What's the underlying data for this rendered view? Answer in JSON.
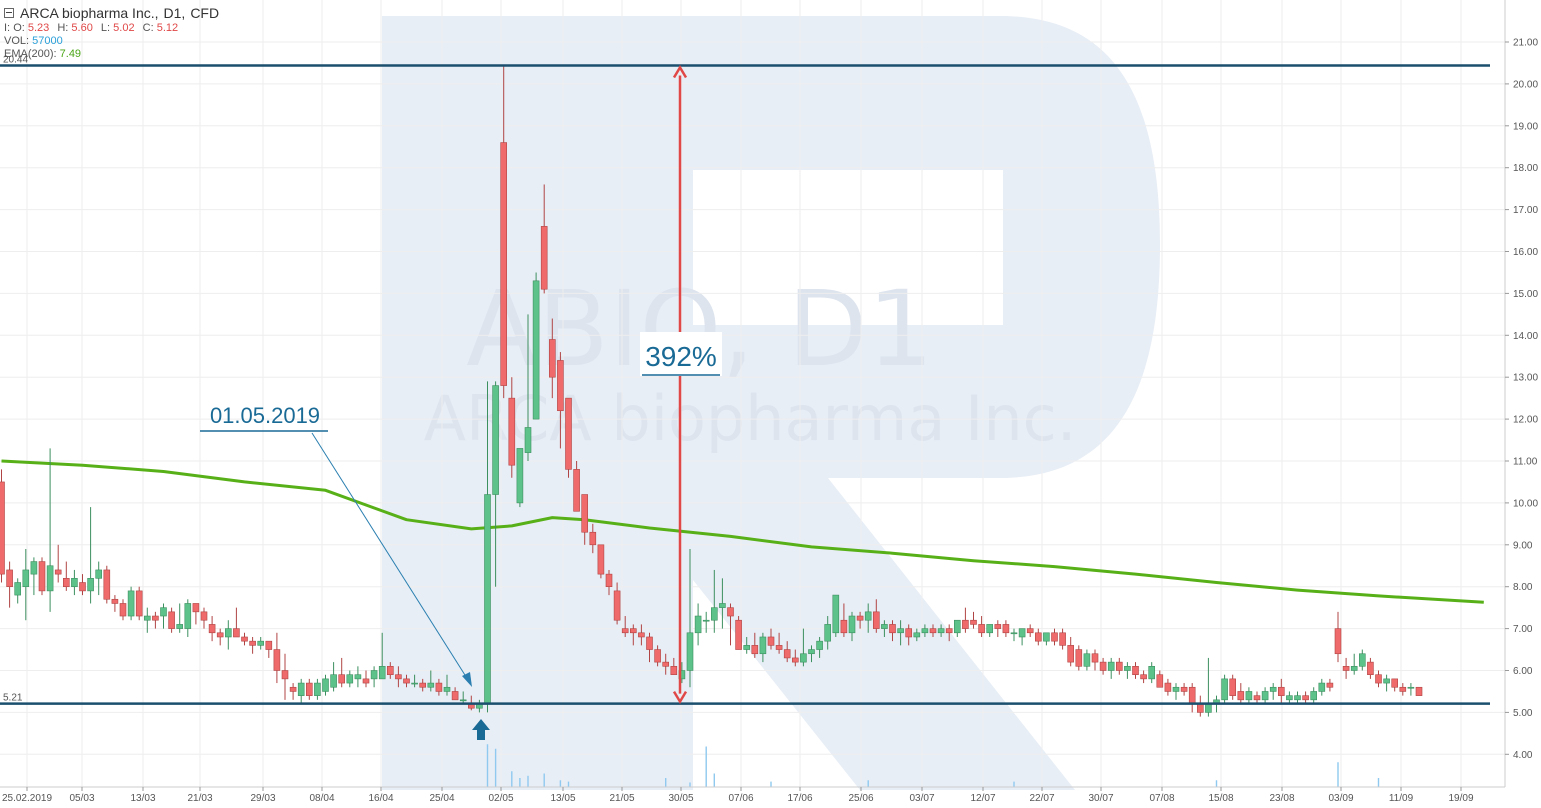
{
  "header": {
    "title": "ARCA biopharma Inc.,",
    "timeframe": "D1,",
    "type": "CFD",
    "ohlc": {
      "i_label": "I:",
      "o_label": "O:",
      "o": "5.23",
      "h_label": "H:",
      "h": "5.60",
      "l_label": "L:",
      "l": "5.02",
      "c_label": "C:",
      "c": "5.12"
    },
    "vol_label": "VOL:",
    "vol": "57000",
    "ema_label": "EMA(200):",
    "ema": "7.49"
  },
  "watermark": {
    "line1": "ABIO, D1",
    "line2": "ARCA biopharma Inc."
  },
  "annotations": {
    "date": "01.05.2019",
    "percent": "392%",
    "upper_level": "20.44",
    "lower_level": "5.21"
  },
  "colors": {
    "bull": "#5cc28a",
    "bear": "#ef6b6b",
    "ema": "#58b018",
    "level": "#1b4f6e",
    "arrow": "#e04848",
    "annotation": "#1a6a96",
    "watermark": "#e8eef6"
  },
  "chart_data": {
    "type": "candlestick",
    "title": "ARCA biopharma Inc., D1, CFD",
    "ylim": [
      3.6,
      21.6
    ],
    "y_ticks": [
      "4.00",
      "5.00",
      "6.00",
      "7.00",
      "8.00",
      "9.00",
      "10.00",
      "11.00",
      "12.00",
      "13.00",
      "14.00",
      "15.00",
      "16.00",
      "17.00",
      "18.00",
      "19.00",
      "20.00",
      "21.00"
    ],
    "x_ticks": [
      "25.02.2019",
      "05/03",
      "13/03",
      "21/03",
      "29/03",
      "08/04",
      "16/04",
      "25/04",
      "02/05",
      "13/05",
      "21/05",
      "30/05",
      "07/06",
      "17/06",
      "25/06",
      "03/07",
      "12/07",
      "22/07",
      "30/07",
      "07/08",
      "15/08",
      "23/08",
      "03/09",
      "11/09",
      "19/09"
    ],
    "horizontal_levels": [
      20.44,
      5.21
    ],
    "ema200": [
      [
        0,
        11.0
      ],
      [
        10,
        10.9
      ],
      [
        20,
        10.75
      ],
      [
        30,
        10.5
      ],
      [
        40,
        10.3
      ],
      [
        45,
        9.95
      ],
      [
        50,
        9.6
      ],
      [
        58,
        9.38
      ],
      [
        63,
        9.45
      ],
      [
        68,
        9.65
      ],
      [
        72,
        9.6
      ],
      [
        80,
        9.4
      ],
      [
        90,
        9.2
      ],
      [
        100,
        8.95
      ],
      [
        110,
        8.8
      ],
      [
        120,
        8.62
      ],
      [
        130,
        8.48
      ],
      [
        140,
        8.3
      ],
      [
        150,
        8.1
      ],
      [
        160,
        7.92
      ],
      [
        170,
        7.78
      ],
      [
        183,
        7.63
      ]
    ],
    "candles": [
      [
        10.5,
        10.8,
        8.1,
        8.3
      ],
      [
        8.4,
        8.6,
        7.5,
        8.0
      ],
      [
        7.8,
        8.2,
        7.6,
        8.1
      ],
      [
        8.0,
        8.9,
        7.2,
        8.4
      ],
      [
        8.3,
        8.7,
        7.8,
        8.6
      ],
      [
        8.6,
        8.7,
        7.8,
        7.9
      ],
      [
        7.9,
        11.3,
        7.4,
        8.5
      ],
      [
        8.4,
        9.0,
        8.1,
        8.3
      ],
      [
        8.2,
        8.6,
        7.9,
        8.0
      ],
      [
        8.0,
        8.4,
        7.8,
        8.2
      ],
      [
        8.1,
        8.3,
        7.8,
        7.9
      ],
      [
        7.9,
        9.9,
        7.6,
        8.2
      ],
      [
        8.2,
        8.6,
        7.8,
        8.4
      ],
      [
        8.4,
        8.5,
        7.6,
        7.7
      ],
      [
        7.7,
        7.8,
        7.4,
        7.6
      ],
      [
        7.6,
        7.7,
        7.2,
        7.3
      ],
      [
        7.3,
        8.0,
        7.2,
        7.9
      ],
      [
        7.9,
        8.0,
        7.2,
        7.3
      ],
      [
        7.2,
        7.5,
        6.9,
        7.3
      ],
      [
        7.3,
        7.4,
        7.0,
        7.2
      ],
      [
        7.3,
        7.6,
        7.0,
        7.5
      ],
      [
        7.4,
        7.5,
        6.9,
        7.0
      ],
      [
        7.0,
        7.6,
        6.9,
        7.1
      ],
      [
        7.0,
        7.7,
        6.8,
        7.6
      ],
      [
        7.6,
        7.6,
        7.1,
        7.4
      ],
      [
        7.4,
        7.5,
        7.0,
        7.2
      ],
      [
        7.1,
        7.3,
        6.7,
        6.9
      ],
      [
        6.9,
        7.0,
        6.6,
        6.8
      ],
      [
        6.8,
        7.2,
        6.5,
        7.0
      ],
      [
        7.0,
        7.5,
        6.8,
        6.8
      ],
      [
        6.8,
        6.9,
        6.6,
        6.7
      ],
      [
        6.7,
        6.8,
        6.4,
        6.6
      ],
      [
        6.6,
        6.8,
        6.5,
        6.7
      ],
      [
        6.7,
        6.7,
        6.3,
        6.5
      ],
      [
        6.5,
        6.9,
        5.7,
        6.0
      ],
      [
        6.0,
        6.4,
        5.3,
        5.8
      ],
      [
        5.6,
        5.7,
        5.3,
        5.5
      ],
      [
        5.4,
        5.8,
        5.2,
        5.7
      ],
      [
        5.7,
        5.8,
        5.3,
        5.4
      ],
      [
        5.4,
        5.8,
        5.3,
        5.7
      ],
      [
        5.5,
        5.9,
        5.4,
        5.8
      ],
      [
        5.6,
        6.2,
        5.5,
        5.9
      ],
      [
        5.9,
        6.3,
        5.6,
        5.7
      ],
      [
        5.7,
        6.0,
        5.6,
        5.9
      ],
      [
        5.8,
        6.1,
        5.6,
        5.9
      ],
      [
        5.8,
        6.0,
        5.6,
        5.7
      ],
      [
        5.8,
        6.1,
        5.6,
        6.0
      ],
      [
        5.8,
        6.9,
        5.8,
        6.1
      ],
      [
        6.1,
        6.2,
        5.8,
        5.9
      ],
      [
        5.9,
        6.1,
        5.6,
        5.8
      ],
      [
        5.8,
        5.9,
        5.6,
        5.7
      ],
      [
        5.7,
        5.9,
        5.6,
        5.7
      ],
      [
        5.7,
        5.8,
        5.5,
        5.6
      ],
      [
        5.6,
        6.0,
        5.5,
        5.7
      ],
      [
        5.7,
        5.8,
        5.4,
        5.5
      ],
      [
        5.5,
        5.9,
        5.4,
        5.6
      ],
      [
        5.5,
        5.6,
        5.3,
        5.3
      ],
      [
        5.3,
        5.5,
        5.2,
        5.3
      ],
      [
        5.2,
        5.4,
        5.05,
        5.1
      ],
      [
        5.1,
        5.3,
        5.0,
        5.2
      ],
      [
        5.2,
        12.9,
        5.0,
        10.2
      ],
      [
        10.2,
        12.9,
        8.0,
        12.8
      ],
      [
        18.6,
        20.44,
        12.5,
        12.8
      ],
      [
        12.5,
        13.0,
        10.6,
        10.9
      ],
      [
        10.0,
        11.2,
        9.9,
        11.3
      ],
      [
        11.2,
        14.5,
        11.0,
        11.8
      ],
      [
        12.0,
        15.5,
        12.0,
        15.3
      ],
      [
        16.6,
        17.6,
        15.0,
        15.1
      ],
      [
        13.9,
        14.4,
        12.5,
        13.0
      ],
      [
        13.4,
        13.6,
        11.3,
        12.2
      ],
      [
        12.5,
        12.5,
        10.6,
        10.8
      ],
      [
        10.8,
        11.0,
        9.8,
        9.8
      ],
      [
        10.2,
        10.2,
        9.0,
        9.3
      ],
      [
        9.3,
        9.5,
        8.8,
        9.0
      ],
      [
        9.0,
        9.0,
        8.2,
        8.3
      ],
      [
        8.3,
        8.4,
        7.8,
        8.0
      ],
      [
        7.9,
        8.1,
        7.1,
        7.2
      ],
      [
        7.0,
        7.3,
        6.8,
        6.9
      ],
      [
        7.0,
        7.1,
        6.6,
        6.9
      ],
      [
        6.9,
        7.1,
        6.6,
        6.8
      ],
      [
        6.8,
        6.9,
        6.2,
        6.5
      ],
      [
        6.5,
        6.6,
        6.1,
        6.2
      ],
      [
        6.2,
        6.4,
        5.9,
        6.1
      ],
      [
        6.1,
        6.3,
        5.9,
        5.9
      ],
      [
        5.8,
        6.2,
        5.7,
        6.0
      ],
      [
        6.0,
        8.9,
        5.6,
        6.9
      ],
      [
        6.9,
        7.6,
        6.6,
        7.3
      ],
      [
        7.2,
        7.4,
        6.9,
        7.2
      ],
      [
        7.2,
        8.4,
        6.9,
        7.5
      ],
      [
        7.5,
        8.2,
        7.0,
        7.6
      ],
      [
        7.5,
        7.6,
        6.6,
        7.3
      ],
      [
        7.2,
        7.3,
        6.5,
        6.5
      ],
      [
        6.5,
        6.8,
        6.4,
        6.6
      ],
      [
        6.6,
        6.9,
        6.3,
        6.4
      ],
      [
        6.4,
        6.9,
        6.2,
        6.8
      ],
      [
        6.8,
        7.0,
        6.5,
        6.6
      ],
      [
        6.6,
        6.9,
        6.4,
        6.5
      ],
      [
        6.5,
        6.7,
        6.2,
        6.3
      ],
      [
        6.3,
        6.5,
        6.1,
        6.2
      ],
      [
        6.2,
        7.0,
        6.1,
        6.4
      ],
      [
        6.4,
        6.6,
        6.2,
        6.5
      ],
      [
        6.5,
        6.8,
        6.3,
        6.7
      ],
      [
        6.7,
        7.3,
        6.5,
        7.1
      ],
      [
        6.9,
        7.8,
        6.8,
        7.8
      ],
      [
        7.2,
        7.6,
        6.8,
        6.9
      ],
      [
        6.9,
        7.4,
        6.7,
        7.3
      ],
      [
        7.3,
        7.4,
        7.0,
        7.2
      ],
      [
        7.2,
        7.6,
        6.9,
        7.4
      ],
      [
        7.4,
        7.7,
        6.9,
        7.0
      ],
      [
        7.0,
        7.2,
        6.8,
        7.1
      ],
      [
        7.1,
        7.2,
        6.7,
        6.9
      ],
      [
        6.9,
        7.2,
        6.6,
        7.0
      ],
      [
        7.0,
        7.1,
        6.6,
        6.8
      ],
      [
        6.8,
        7.0,
        6.7,
        6.9
      ],
      [
        6.9,
        7.1,
        6.8,
        7.0
      ],
      [
        7.0,
        7.1,
        6.8,
        6.9
      ],
      [
        6.9,
        7.1,
        6.8,
        7.0
      ],
      [
        7.0,
        7.1,
        6.7,
        6.9
      ],
      [
        6.9,
        7.2,
        6.8,
        7.2
      ],
      [
        7.2,
        7.5,
        6.9,
        7.0
      ],
      [
        7.2,
        7.4,
        7.0,
        7.1
      ],
      [
        7.1,
        7.3,
        6.8,
        6.9
      ],
      [
        6.9,
        7.1,
        6.8,
        7.1
      ],
      [
        7.1,
        7.2,
        6.8,
        7.0
      ],
      [
        7.1,
        7.2,
        6.8,
        6.9
      ],
      [
        6.9,
        7.0,
        6.7,
        6.9
      ],
      [
        6.8,
        7.0,
        6.6,
        7.0
      ],
      [
        7.0,
        7.1,
        6.8,
        6.9
      ],
      [
        6.9,
        7.0,
        6.6,
        6.7
      ],
      [
        6.7,
        6.9,
        6.6,
        6.9
      ],
      [
        6.9,
        7.0,
        6.6,
        6.7
      ],
      [
        6.9,
        7.0,
        6.5,
        6.6
      ],
      [
        6.6,
        6.8,
        6.1,
        6.2
      ],
      [
        6.5,
        6.6,
        6.0,
        6.1
      ],
      [
        6.1,
        6.5,
        6.0,
        6.4
      ],
      [
        6.4,
        6.5,
        6.0,
        6.2
      ],
      [
        6.2,
        6.3,
        5.9,
        6.0
      ],
      [
        6.0,
        6.3,
        5.8,
        6.2
      ],
      [
        6.2,
        6.3,
        5.9,
        6.0
      ],
      [
        6.0,
        6.2,
        5.8,
        6.1
      ],
      [
        6.1,
        6.2,
        5.8,
        5.9
      ],
      [
        5.9,
        6.0,
        5.7,
        5.8
      ],
      [
        5.8,
        6.2,
        5.7,
        6.1
      ],
      [
        5.9,
        6.0,
        5.6,
        5.6
      ],
      [
        5.7,
        5.8,
        5.4,
        5.5
      ],
      [
        5.5,
        5.7,
        5.3,
        5.6
      ],
      [
        5.6,
        5.7,
        5.4,
        5.5
      ],
      [
        5.6,
        5.7,
        5.0,
        5.2
      ],
      [
        5.2,
        5.4,
        4.9,
        5.0
      ],
      [
        5.0,
        6.3,
        4.9,
        5.2
      ],
      [
        5.2,
        5.4,
        5.0,
        5.3
      ],
      [
        5.3,
        5.9,
        5.2,
        5.8
      ],
      [
        5.8,
        5.9,
        5.3,
        5.4
      ],
      [
        5.5,
        5.7,
        5.2,
        5.3
      ],
      [
        5.3,
        5.6,
        5.2,
        5.5
      ],
      [
        5.4,
        5.5,
        5.2,
        5.3
      ],
      [
        5.3,
        5.6,
        5.2,
        5.5
      ],
      [
        5.5,
        5.7,
        5.3,
        5.6
      ],
      [
        5.6,
        5.8,
        5.2,
        5.4
      ],
      [
        5.3,
        5.5,
        5.2,
        5.4
      ],
      [
        5.3,
        5.5,
        5.2,
        5.4
      ],
      [
        5.4,
        5.5,
        5.2,
        5.3
      ],
      [
        5.3,
        5.6,
        5.2,
        5.5
      ],
      [
        5.5,
        5.8,
        5.4,
        5.7
      ],
      [
        5.7,
        5.8,
        5.5,
        5.6
      ],
      [
        7.0,
        7.4,
        6.2,
        6.4
      ],
      [
        6.1,
        6.3,
        5.8,
        6.0
      ],
      [
        6.0,
        6.4,
        5.9,
        6.1
      ],
      [
        6.1,
        6.5,
        6.0,
        6.4
      ],
      [
        6.2,
        6.3,
        5.8,
        5.9
      ],
      [
        5.9,
        6.0,
        5.6,
        5.7
      ],
      [
        5.7,
        5.9,
        5.5,
        5.8
      ],
      [
        5.8,
        5.8,
        5.5,
        5.6
      ],
      [
        5.6,
        5.7,
        5.4,
        5.5
      ],
      [
        5.6,
        5.7,
        5.4,
        5.6
      ],
      [
        5.6,
        5.6,
        5.4,
        5.4
      ]
    ],
    "volumes": [
      [
        60,
        0.95
      ],
      [
        61,
        0.85
      ],
      [
        63,
        0.35
      ],
      [
        64,
        0.2
      ],
      [
        65,
        0.25
      ],
      [
        67,
        0.3
      ],
      [
        69,
        0.15
      ],
      [
        70,
        0.12
      ],
      [
        82,
        0.2
      ],
      [
        85,
        0.1
      ],
      [
        87,
        0.9
      ],
      [
        88,
        0.3
      ],
      [
        95,
        0.12
      ],
      [
        107,
        0.15
      ],
      [
        125,
        0.12
      ],
      [
        150,
        0.15
      ],
      [
        165,
        0.55
      ],
      [
        170,
        0.2
      ]
    ]
  }
}
